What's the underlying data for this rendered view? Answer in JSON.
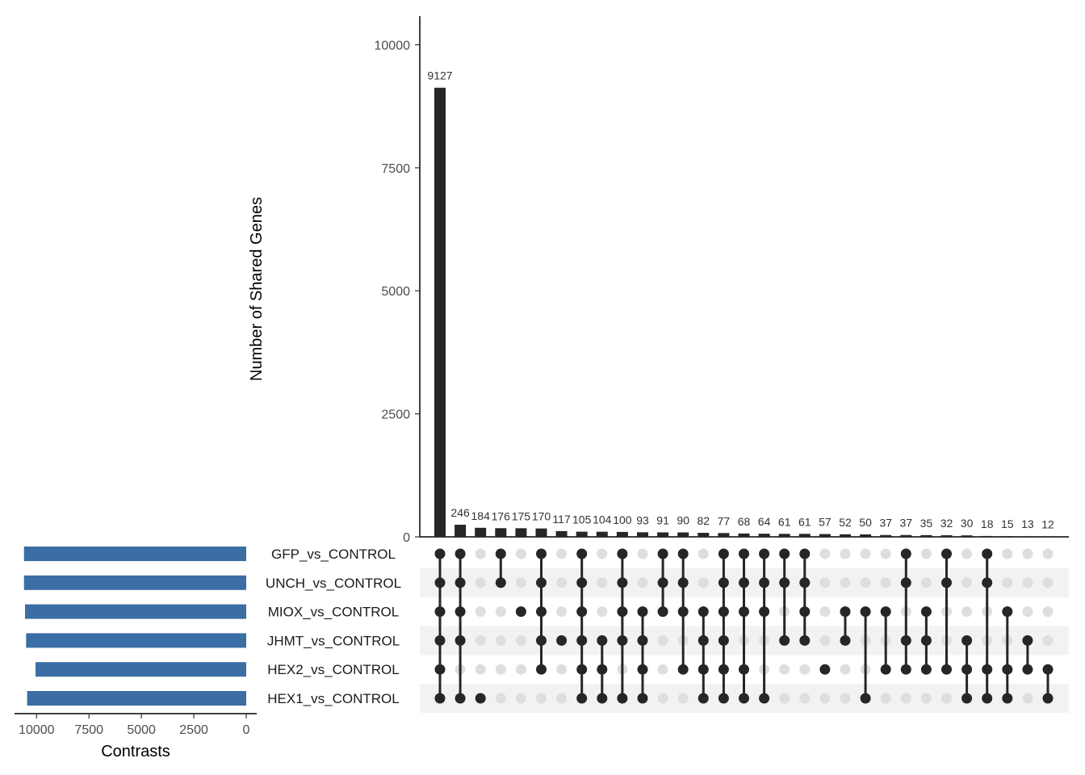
{
  "chart_data": {
    "type": "upset",
    "ylabel": "Number of Shared Genes",
    "size_axis_label": "Contrasts",
    "ylim": [
      0,
      10500
    ],
    "y_ticks": [
      0,
      2500,
      5000,
      7500,
      10000
    ],
    "set_size_ticks": [
      10000,
      7500,
      5000,
      2500,
      0
    ],
    "sets": [
      {
        "name": "GFP_vs_CONTROL",
        "size": 10600
      },
      {
        "name": "UNCH_vs_CONTROL",
        "size": 10600
      },
      {
        "name": "MIOX_vs_CONTROL",
        "size": 10550
      },
      {
        "name": "JHMT_vs_CONTROL",
        "size": 10500
      },
      {
        "name": "HEX2_vs_CONTROL",
        "size": 10050
      },
      {
        "name": "HEX1_vs_CONTROL",
        "size": 10450
      }
    ],
    "intersections": [
      {
        "value": 9127,
        "members": [
          0,
          1,
          2,
          3,
          4,
          5
        ]
      },
      {
        "value": 246,
        "members": [
          0,
          1,
          2,
          3,
          5
        ]
      },
      {
        "value": 184,
        "members": [
          5
        ]
      },
      {
        "value": 176,
        "members": [
          0,
          1
        ]
      },
      {
        "value": 175,
        "members": [
          2
        ]
      },
      {
        "value": 170,
        "members": [
          0,
          1,
          2,
          3,
          4
        ]
      },
      {
        "value": 117,
        "members": [
          3
        ]
      },
      {
        "value": 105,
        "members": [
          0,
          1,
          2,
          3,
          4,
          5
        ]
      },
      {
        "value": 104,
        "members": [
          3,
          4,
          5
        ]
      },
      {
        "value": 100,
        "members": [
          0,
          1,
          2,
          3,
          5
        ]
      },
      {
        "value": 93,
        "members": [
          2,
          3,
          4,
          5
        ]
      },
      {
        "value": 91,
        "members": [
          0,
          1,
          2
        ]
      },
      {
        "value": 90,
        "members": [
          0,
          1,
          2,
          4
        ]
      },
      {
        "value": 82,
        "members": [
          2,
          3,
          4,
          5
        ]
      },
      {
        "value": 77,
        "members": [
          0,
          1,
          2,
          3,
          4,
          5
        ]
      },
      {
        "value": 68,
        "members": [
          0,
          1,
          2,
          4,
          5
        ]
      },
      {
        "value": 64,
        "members": [
          0,
          1,
          2,
          5
        ]
      },
      {
        "value": 61,
        "members": [
          0,
          1,
          3
        ]
      },
      {
        "value": 61,
        "members": [
          0,
          1,
          2,
          3
        ]
      },
      {
        "value": 57,
        "members": [
          4
        ]
      },
      {
        "value": 52,
        "members": [
          2,
          3
        ]
      },
      {
        "value": 50,
        "members": [
          2,
          5
        ]
      },
      {
        "value": 37,
        "members": [
          2,
          4
        ]
      },
      {
        "value": 37,
        "members": [
          0,
          1,
          3,
          4
        ]
      },
      {
        "value": 35,
        "members": [
          2,
          3,
          4
        ]
      },
      {
        "value": 32,
        "members": [
          0,
          1,
          4
        ]
      },
      {
        "value": 30,
        "members": [
          3,
          4,
          5
        ]
      },
      {
        "value": 18,
        "members": [
          0,
          1,
          4,
          5
        ]
      },
      {
        "value": 15,
        "members": [
          2,
          4,
          5
        ]
      },
      {
        "value": 13,
        "members": [
          3,
          4
        ]
      },
      {
        "value": 12,
        "members": [
          4,
          5
        ]
      }
    ],
    "colors": {
      "bar": "#262626",
      "set_bar": "#3a6ea5",
      "dot_on": "#262626",
      "dot_off": "#dedede",
      "stripe": "#f2f2f2"
    }
  }
}
